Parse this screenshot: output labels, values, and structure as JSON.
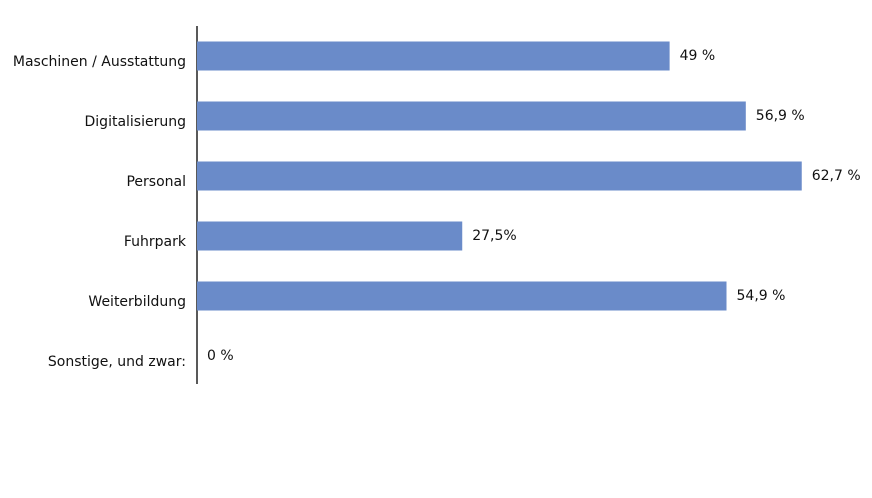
{
  "chart_data": {
    "type": "bar",
    "orientation": "horizontal",
    "categories": [
      "Maschinen / Ausstattung",
      "Digitalisierung",
      "Personal",
      "Fuhrpark",
      "Weiterbildung",
      "Sonstige, und zwar:"
    ],
    "values": [
      49,
      56.9,
      62.7,
      27.5,
      54.9,
      0
    ],
    "value_labels": [
      "49 %",
      "56,9 %",
      "62,7 %",
      "27,5%",
      "54,9 %",
      "0 %"
    ],
    "color": "#6a8bc9"
  }
}
